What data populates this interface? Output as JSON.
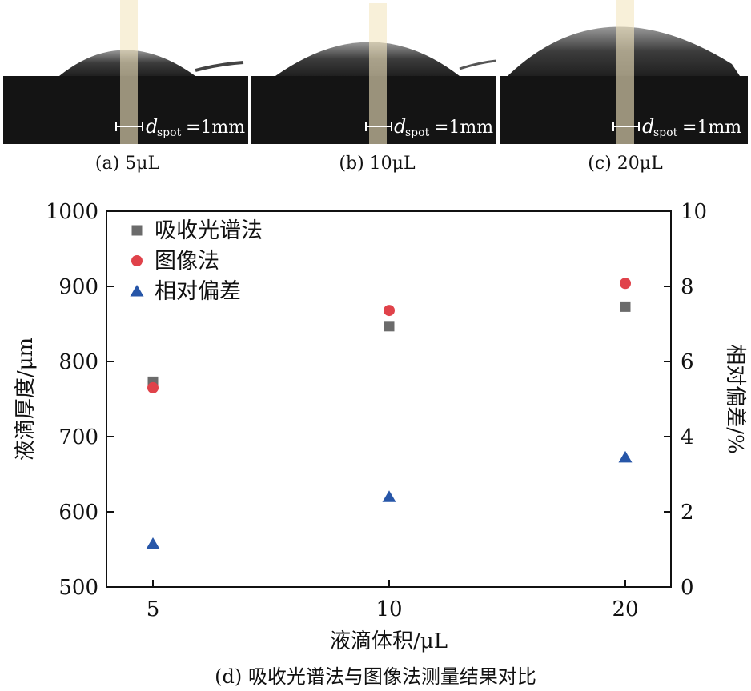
{
  "photos": [
    {
      "caption": "(a) 5μL",
      "scale_symbol": "d",
      "scale_sub": "spot",
      "scale_value": "=1mm",
      "volume_ul": 5
    },
    {
      "caption": "(b) 10μL",
      "scale_symbol": "d",
      "scale_sub": "spot",
      "scale_value": "=1mm",
      "volume_ul": 10
    },
    {
      "caption": "(c) 20μL",
      "scale_symbol": "d",
      "scale_sub": "spot",
      "scale_value": "=1mm",
      "volume_ul": 20
    }
  ],
  "chart_data": {
    "type": "scatter",
    "title": "(d) 吸收光谱法与图像法测量结果对比",
    "xlabel": "液滴体积/μL",
    "ylabel_left": "液滴厚度/μm",
    "ylabel_right": "相对偏差/%",
    "categories": [
      "5",
      "10",
      "20"
    ],
    "ylim_left": [
      500,
      1000
    ],
    "yticks_left": [
      "500",
      "600",
      "700",
      "800",
      "900",
      "1000"
    ],
    "ylim_right": [
      0,
      10
    ],
    "yticks_right": [
      "0",
      "2",
      "4",
      "6",
      "8",
      "10"
    ],
    "grid": false,
    "legend_position": "top-left",
    "series": [
      {
        "name": "吸收光谱法",
        "axis": "left",
        "marker": "square",
        "color": "#6b6b6b",
        "values": [
          773,
          847,
          873
        ]
      },
      {
        "name": "图像法",
        "axis": "left",
        "marker": "circle",
        "color": "#e0424a",
        "values": [
          765,
          868,
          904
        ]
      },
      {
        "name": "相对偏差",
        "axis": "right",
        "marker": "triangle",
        "color": "#2756a8",
        "values": [
          1.15,
          2.4,
          3.45
        ]
      }
    ]
  }
}
